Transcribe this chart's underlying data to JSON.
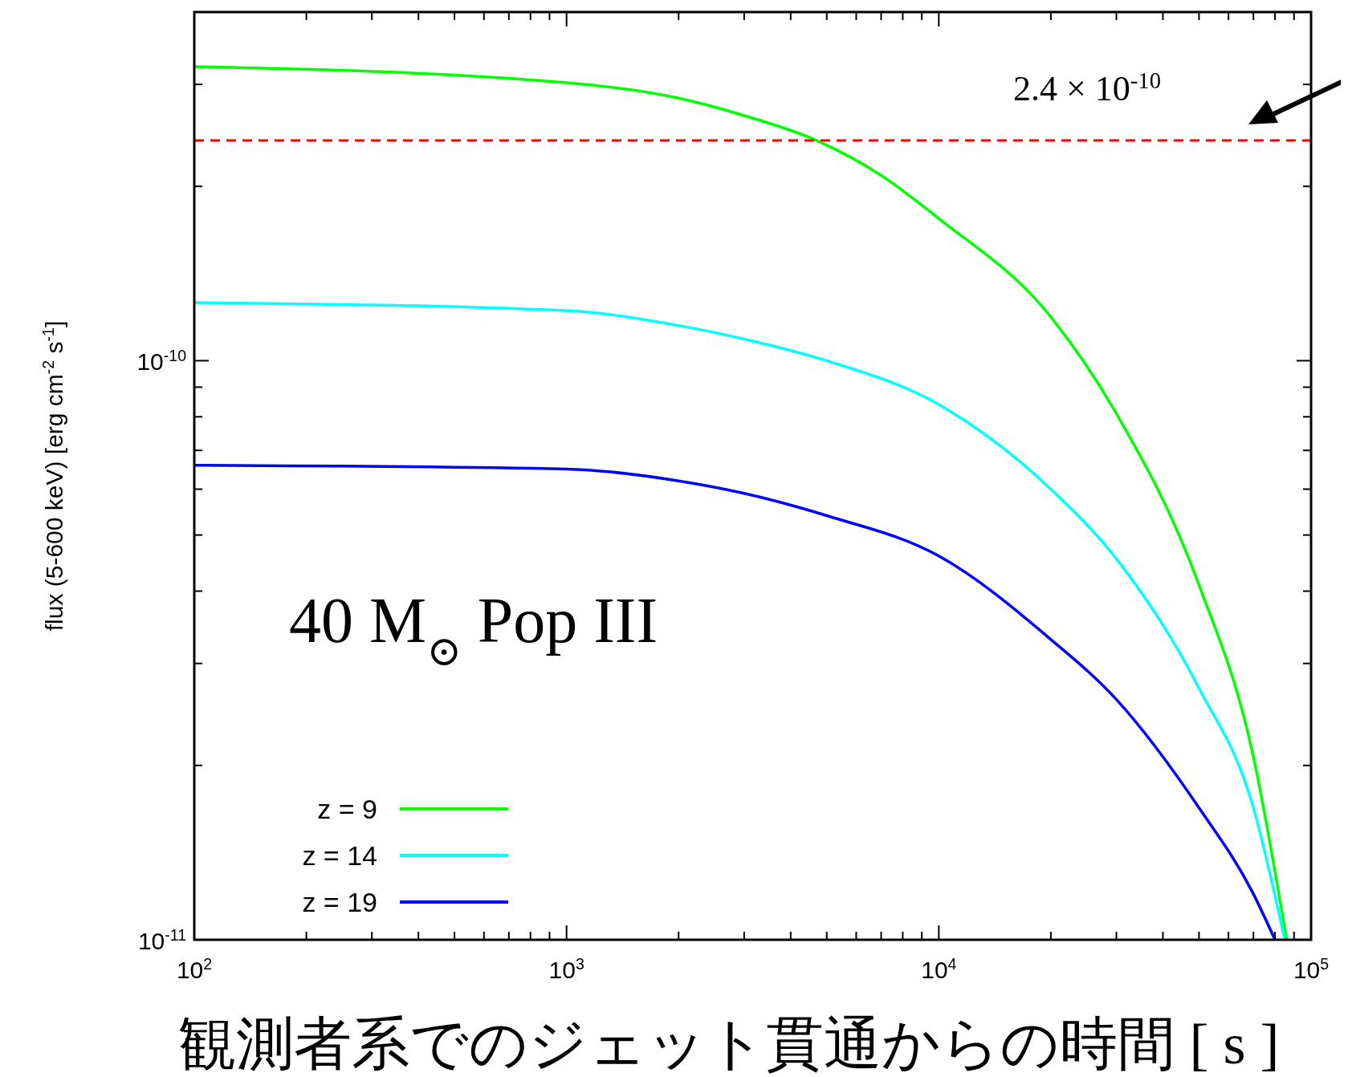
{
  "chart_data": {
    "type": "line",
    "xlabel": "観測者系でのジェット貫通からの時間 [ s ]",
    "ylabel": "flux (5-600 keV) [erg cm$^{-2}$ s$^{-1}$]",
    "log": "xy",
    "xlim": [
      100,
      100000
    ],
    "ylim": [
      1e-11,
      4e-10
    ],
    "xticks": [
      {
        "value": 100,
        "label": "10$^{2}$"
      },
      {
        "value": 200,
        "label": null
      },
      {
        "value": 300,
        "label": null
      },
      {
        "value": 400,
        "label": null
      },
      {
        "value": 500,
        "label": null
      },
      {
        "value": 600,
        "label": null
      },
      {
        "value": 700,
        "label": null
      },
      {
        "value": 800,
        "label": null
      },
      {
        "value": 900,
        "label": null
      },
      {
        "value": 1000,
        "label": "10$^{3}$"
      },
      {
        "value": 2000,
        "label": null
      },
      {
        "value": 3000,
        "label": null
      },
      {
        "value": 4000,
        "label": null
      },
      {
        "value": 5000,
        "label": null
      },
      {
        "value": 6000,
        "label": null
      },
      {
        "value": 7000,
        "label": null
      },
      {
        "value": 8000,
        "label": null
      },
      {
        "value": 9000,
        "label": null
      },
      {
        "value": 10000,
        "label": "10$^{4}$"
      },
      {
        "value": 20000,
        "label": null
      },
      {
        "value": 30000,
        "label": null
      },
      {
        "value": 40000,
        "label": null
      },
      {
        "value": 50000,
        "label": null
      },
      {
        "value": 60000,
        "label": null
      },
      {
        "value": 70000,
        "label": null
      },
      {
        "value": 80000,
        "label": null
      },
      {
        "value": 90000,
        "label": null
      },
      {
        "value": 100000,
        "label": "10$^{5}$"
      }
    ],
    "yticks": [
      {
        "value": 1e-11,
        "label": "10$^{-11}$"
      },
      {
        "value": 2e-11,
        "label": null
      },
      {
        "value": 3e-11,
        "label": null
      },
      {
        "value": 4e-11,
        "label": null
      },
      {
        "value": 5e-11,
        "label": null
      },
      {
        "value": 6e-11,
        "label": null
      },
      {
        "value": 7e-11,
        "label": null
      },
      {
        "value": 8e-11,
        "label": null
      },
      {
        "value": 9e-11,
        "label": null
      },
      {
        "value": 1e-10,
        "label": "10$^{-10}$"
      },
      {
        "value": 2e-10,
        "label": null
      },
      {
        "value": 3e-10,
        "label": null
      },
      {
        "value": 4e-10,
        "label": null
      }
    ],
    "series": [
      {
        "name": "z =  9",
        "color": "#00ff00",
        "x": [
          100,
          1000,
          2000,
          3000,
          4700,
          7000,
          10000,
          20000,
          30000,
          50000,
          70000,
          86000
        ],
        "values": [
          3.22e-10,
          3.02e-10,
          2.84e-10,
          2.65e-10,
          2.4e-10,
          2.09e-10,
          1.76e-10,
          1.19e-10,
          8.1e-11,
          4.1e-11,
          2.07e-11,
          1e-11
        ]
      },
      {
        "name": "z =  14",
        "color": "#00ffff",
        "x": [
          100,
          1000,
          2000,
          3000,
          5000,
          10000,
          20000,
          30000,
          50000,
          70000,
          85000
        ],
        "values": [
          1.26e-10,
          1.22e-10,
          1.15e-10,
          1.09e-10,
          1e-10,
          8.4e-11,
          6e-11,
          4.55e-11,
          2.72e-11,
          1.69e-11,
          1e-11
        ]
      },
      {
        "name": "z =  19",
        "color": "#0000ff",
        "x": [
          100,
          1000,
          2000,
          3000,
          5000,
          10000,
          20000,
          30000,
          50000,
          70000,
          80000
        ],
        "values": [
          6.6e-11,
          6.5e-11,
          6.2e-11,
          5.9e-11,
          5.4e-11,
          4.6e-11,
          3.3e-11,
          2.6e-11,
          1.69e-11,
          1.2e-11,
          1e-11
        ]
      }
    ],
    "ref_lines": [
      {
        "axis": "y",
        "value": 2.4e-10,
        "label": "2.4 × 10$^{-10}$",
        "color": "#ff0000",
        "line_style": "dashed"
      }
    ],
    "annotations": [
      "40 M$_{⊙}$ Pop III"
    ],
    "legend": "bottom left",
    "grid": false,
    "line_style": "solid"
  }
}
